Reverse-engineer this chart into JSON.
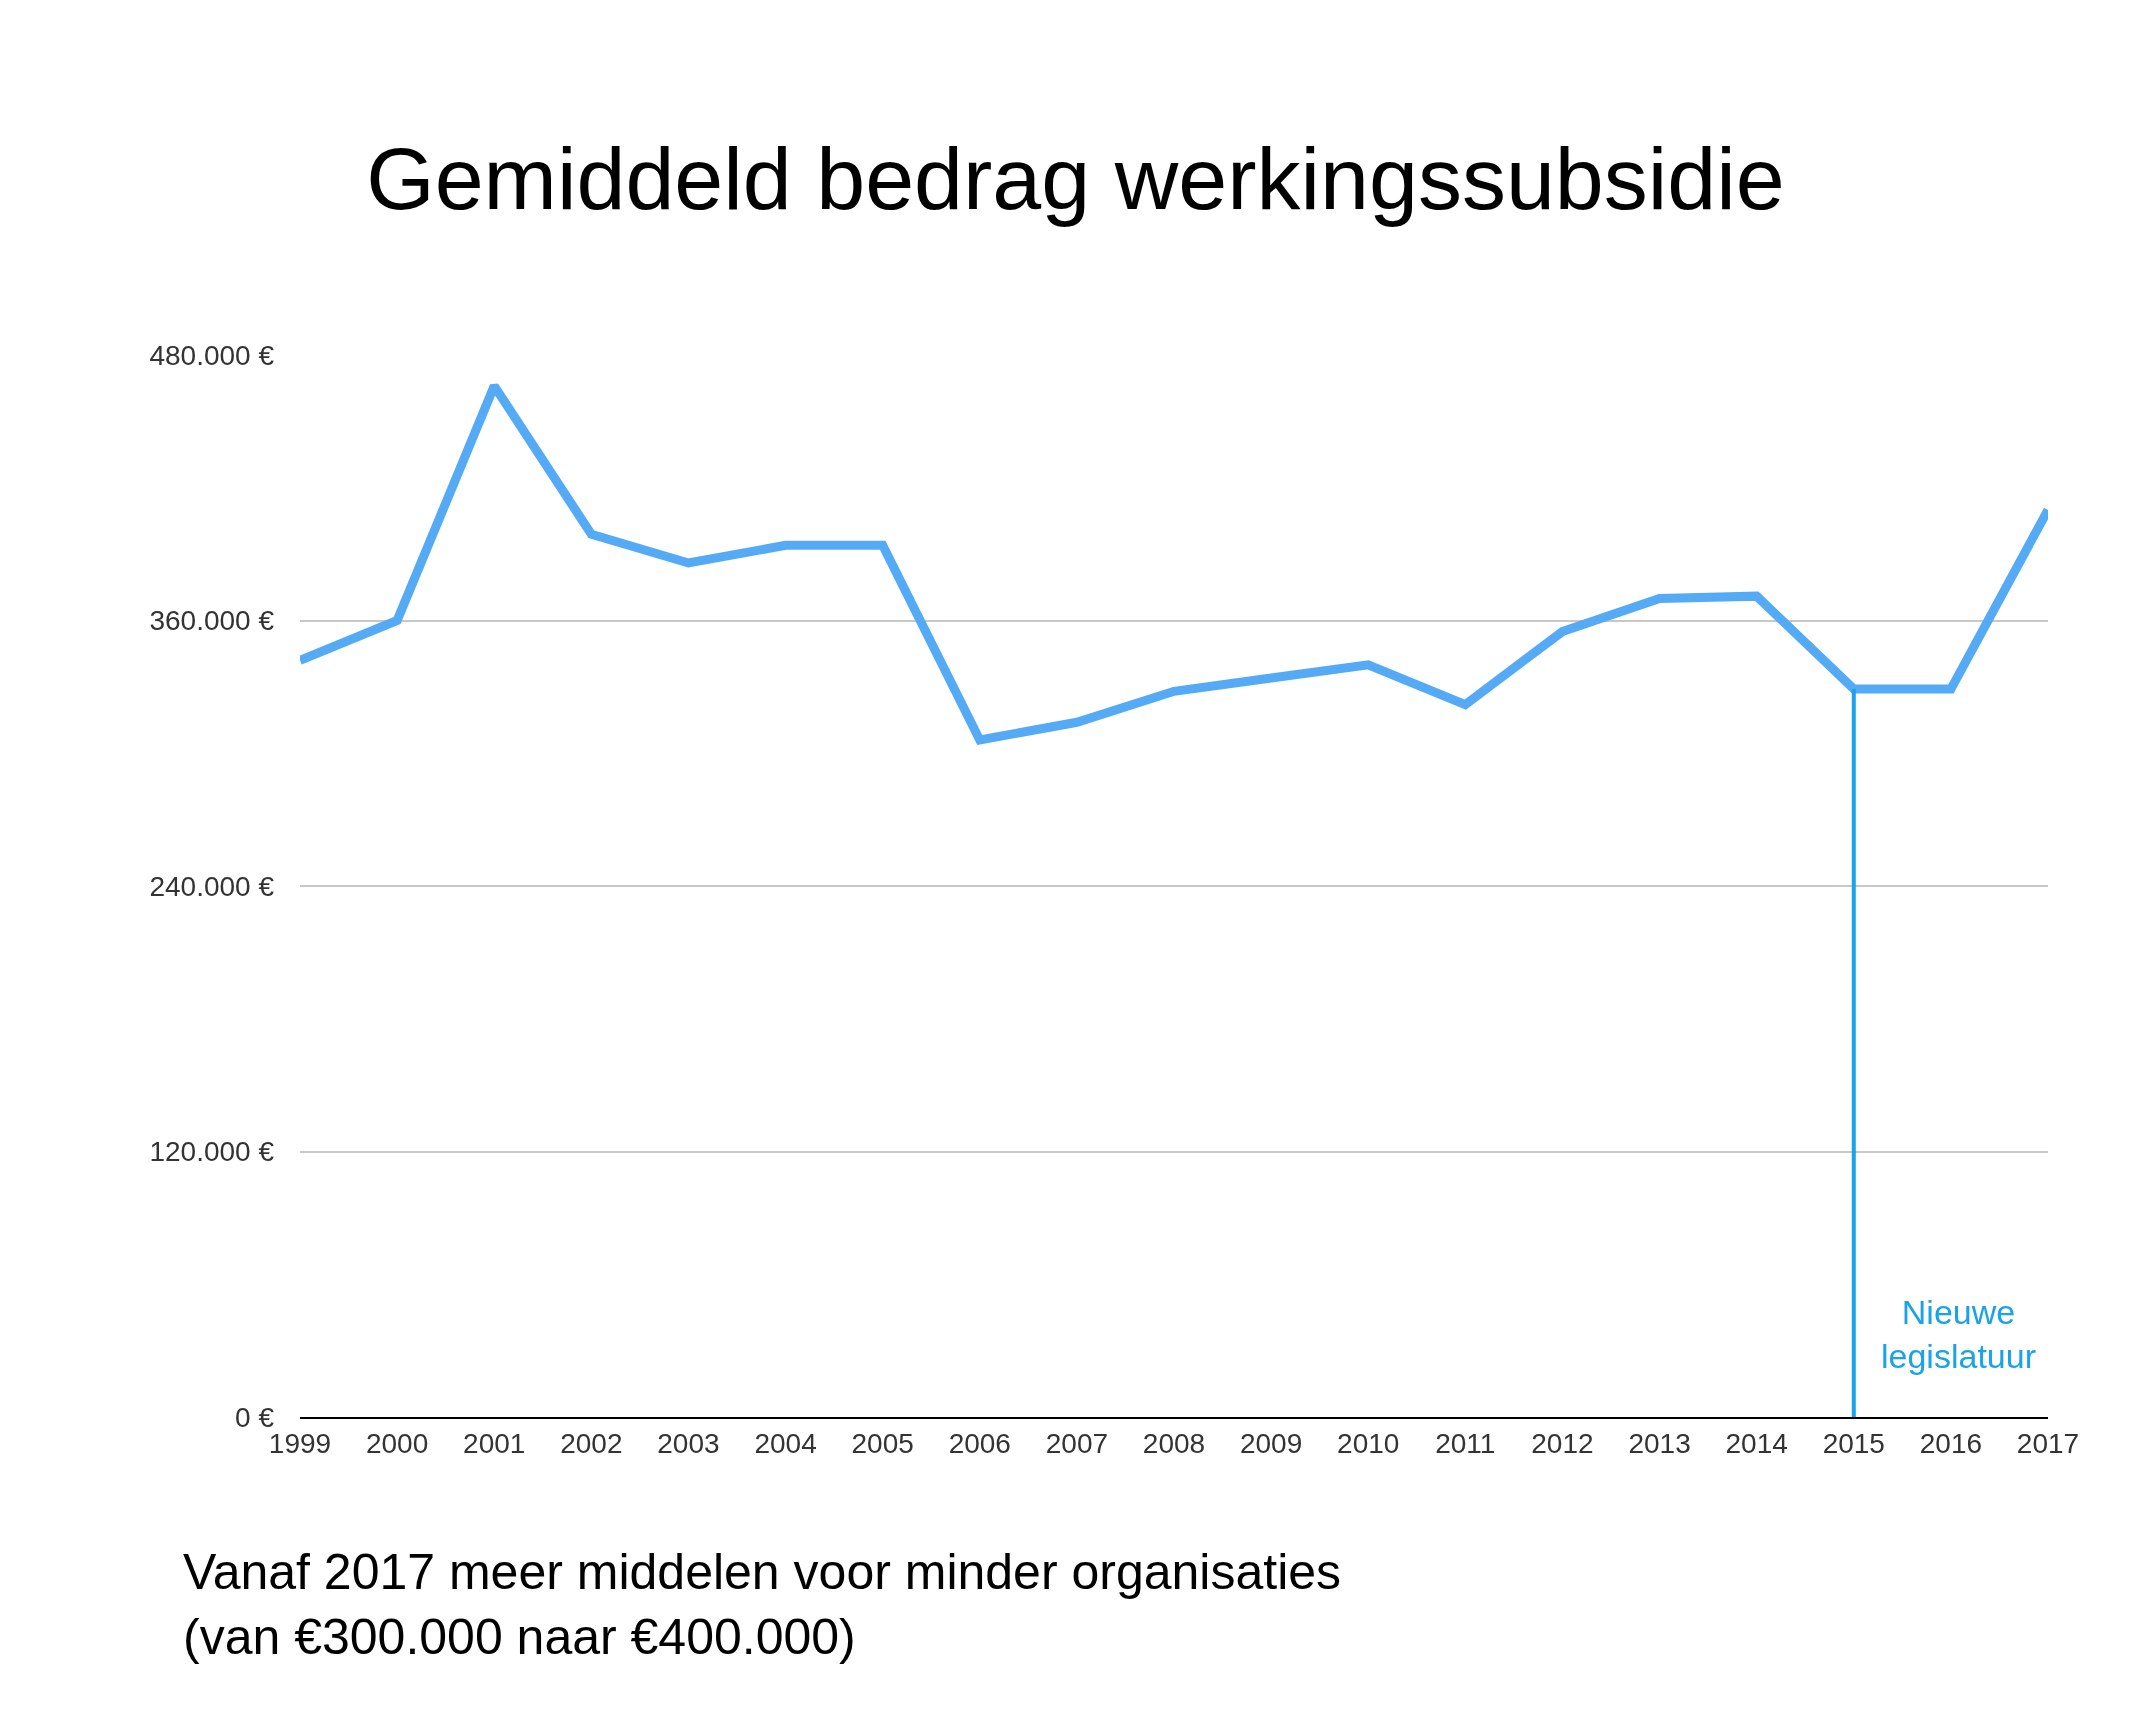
{
  "chart_data": {
    "type": "line",
    "title": "Gemiddeld bedrag werkingssubsidie",
    "x": [
      1999,
      2000,
      2001,
      2002,
      2003,
      2004,
      2005,
      2006,
      2007,
      2008,
      2009,
      2010,
      2011,
      2012,
      2013,
      2014,
      2015,
      2016,
      2017
    ],
    "series": [
      {
        "color": "#55aaf5",
        "values": [
          342000,
          360000,
          466000,
          399000,
          386000,
          394000,
          394000,
          306000,
          314000,
          328000,
          334000,
          340000,
          322000,
          355000,
          370000,
          371000,
          329000,
          329000,
          410000
        ]
      }
    ],
    "xlim": [
      1999,
      2017
    ],
    "xticks": [
      1999,
      2000,
      2001,
      2002,
      2003,
      2004,
      2005,
      2006,
      2007,
      2008,
      2009,
      2010,
      2011,
      2012,
      2013,
      2014,
      2015,
      2016,
      2017
    ],
    "ylim": [
      0,
      480000
    ],
    "yticks": [
      {
        "value": 0,
        "label": "0 €"
      },
      {
        "value": 120000,
        "label": "120.000 €"
      },
      {
        "value": 240000,
        "label": "240.000 €"
      },
      {
        "value": 360000,
        "label": "360.000 €"
      },
      {
        "value": 480000,
        "label": "480.000 €"
      }
    ],
    "ref_lines": [
      {
        "axis": "x",
        "value": 2015,
        "label": "Nieuwe\nlegislatuur",
        "color": "#1aa3e8"
      }
    ],
    "annotations": [
      "Vanaf 2017 meer middelen voor minder organisaties\n(van €300.000 naar €400.000)"
    ],
    "grid": "y",
    "marker": "none",
    "line_style": "solid"
  }
}
